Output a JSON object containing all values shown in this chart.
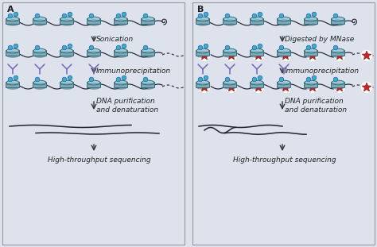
{
  "background_color": "#dde2ec",
  "panel_bg": "#dde2ec",
  "border_color": "#999999",
  "panel_a_label": "A",
  "panel_b_label": "B",
  "step1a_label": "Sonication",
  "step2a_label": "Immunoprecipitation",
  "step3a_label": "DNA purification\nand denaturation",
  "step4a_label": "High-throughput sequencing",
  "step1b_label": "Digested by MNase",
  "step2b_label": "Immunoprecipitation",
  "step3b_label": "DNA purification\nand denaturation",
  "step4b_label": "High-throughput sequencing",
  "nuc_color": "#7aabb8",
  "nuc_edge": "#3a6a7a",
  "nuc_top": "#a0ccd8",
  "dna_color": "#222233",
  "mark_color": "#44aacc",
  "mark_edge": "#1166aa",
  "antibody_color": "#7766bb",
  "star_color": "#cc2222",
  "star_edge": "#991111",
  "text_color": "#222222",
  "arrow_color": "#333333",
  "label_fontsize": 6.5,
  "panel_label_fontsize": 8
}
